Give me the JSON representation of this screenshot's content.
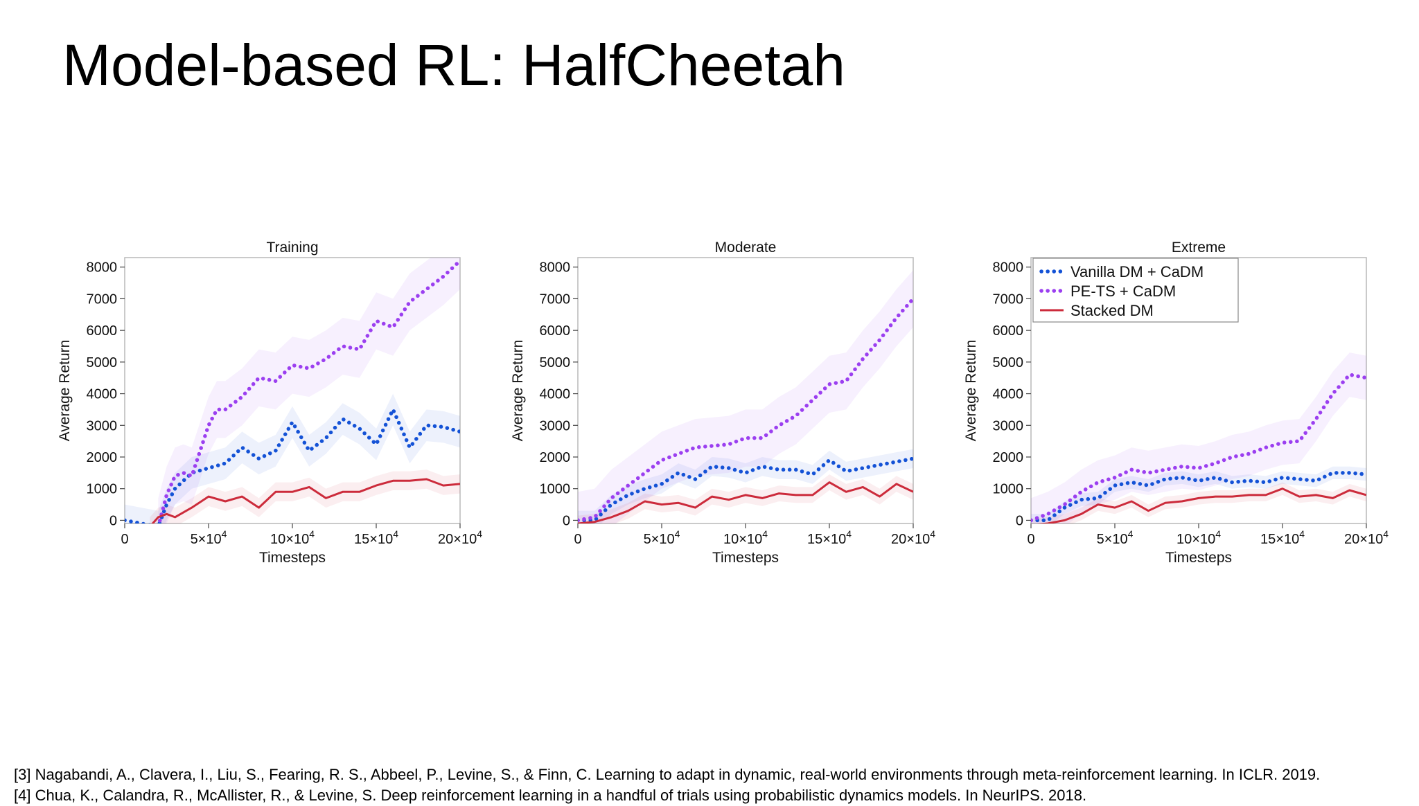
{
  "title": "Model-based RL: HalfCheetah",
  "references": [
    "[3] Nagabandi, A., Clavera, I., Liu, S., Fearing, R. S., Abbeel, P., Levine, S., & Finn, C. Learning to adapt in dynamic, real-world environments through meta-reinforcement learning. In ICLR. 2019.",
    "[4] Chua, K., Calandra, R., McAllister, R., & Levine, S. Deep reinforcement learning in a handful of trials using probabilistic dynamics models. In NeurIPS. 2018."
  ],
  "colors": {
    "vanilla": "#1452d6",
    "pets": "#9b3ff0",
    "stacked": "#cc2b3b"
  },
  "chart_data": [
    {
      "type": "line",
      "title": "Training",
      "xlabel": "Timesteps",
      "ylabel": "Average Return",
      "xlim": [
        0,
        200000
      ],
      "ylim": [
        -100,
        8300
      ],
      "yticks": [
        0,
        1000,
        2000,
        3000,
        4000,
        5000,
        6000,
        7000,
        8000
      ],
      "xticks": [
        0,
        50000,
        100000,
        150000,
        200000
      ],
      "xtick_labels": [
        {
          "base": "0",
          "exp": ""
        },
        {
          "base": "5×10",
          "exp": "4"
        },
        {
          "base": "10×10",
          "exp": "4"
        },
        {
          "base": "15×10",
          "exp": "4"
        },
        {
          "base": "20×10",
          "exp": "4"
        }
      ],
      "grid": false,
      "legend": null,
      "series": [
        {
          "name": "Vanilla DM + CaDM",
          "key": "vanilla",
          "style": "dotted",
          "x": [
            0,
            20000,
            25000,
            30000,
            40000,
            50000,
            60000,
            70000,
            80000,
            90000,
            100000,
            110000,
            120000,
            130000,
            140000,
            150000,
            160000,
            170000,
            180000,
            190000,
            200000
          ],
          "y": [
            0,
            -200,
            500,
            1000,
            1500,
            1650,
            1800,
            2300,
            1950,
            2200,
            3100,
            2200,
            2600,
            3200,
            2900,
            2400,
            3500,
            2300,
            3000,
            2950,
            2800
          ],
          "band": 500
        },
        {
          "name": "PE-TS + CaDM",
          "key": "pets",
          "style": "dotted",
          "x": [
            20000,
            25000,
            30000,
            35000,
            40000,
            45000,
            50000,
            55000,
            60000,
            70000,
            80000,
            90000,
            100000,
            110000,
            120000,
            130000,
            140000,
            150000,
            160000,
            170000,
            180000,
            190000,
            200000
          ],
          "y": [
            -200,
            800,
            1400,
            1500,
            1400,
            2200,
            3000,
            3500,
            3500,
            3900,
            4500,
            4400,
            4900,
            4800,
            5100,
            5500,
            5400,
            6300,
            6100,
            6900,
            7300,
            7700,
            8200
          ],
          "band": 900
        },
        {
          "name": "Stacked DM",
          "key": "stacked",
          "style": "solid",
          "x": [
            15000,
            20000,
            25000,
            30000,
            40000,
            50000,
            60000,
            70000,
            80000,
            90000,
            100000,
            110000,
            120000,
            130000,
            140000,
            150000,
            160000,
            170000,
            180000,
            190000,
            200000
          ],
          "y": [
            -200,
            100,
            200,
            100,
            400,
            750,
            600,
            750,
            400,
            900,
            900,
            1050,
            700,
            900,
            900,
            1100,
            1250,
            1250,
            1300,
            1100,
            1150
          ],
          "band": 300
        }
      ]
    },
    {
      "type": "line",
      "title": "Moderate",
      "xlabel": "Timesteps",
      "ylabel": "Average Return",
      "xlim": [
        0,
        200000
      ],
      "ylim": [
        -100,
        8300
      ],
      "yticks": [
        0,
        1000,
        2000,
        3000,
        4000,
        5000,
        6000,
        7000,
        8000
      ],
      "xticks": [
        0,
        50000,
        100000,
        150000,
        200000
      ],
      "xtick_labels": [
        {
          "base": "0",
          "exp": ""
        },
        {
          "base": "5×10",
          "exp": "4"
        },
        {
          "base": "10×10",
          "exp": "4"
        },
        {
          "base": "15×10",
          "exp": "4"
        },
        {
          "base": "20×10",
          "exp": "4"
        }
      ],
      "grid": false,
      "legend": null,
      "series": [
        {
          "name": "Vanilla DM + CaDM",
          "key": "vanilla",
          "style": "dotted",
          "x": [
            0,
            10000,
            20000,
            30000,
            40000,
            50000,
            60000,
            70000,
            80000,
            90000,
            100000,
            110000,
            120000,
            130000,
            140000,
            150000,
            160000,
            170000,
            180000,
            190000,
            200000
          ],
          "y": [
            0,
            0,
            500,
            800,
            1000,
            1150,
            1500,
            1300,
            1700,
            1650,
            1500,
            1700,
            1600,
            1600,
            1450,
            1900,
            1550,
            1650,
            1750,
            1850,
            1950
          ],
          "band": 300
        },
        {
          "name": "PE-TS + CaDM",
          "key": "pets",
          "style": "dotted",
          "x": [
            0,
            10000,
            20000,
            30000,
            40000,
            50000,
            60000,
            70000,
            80000,
            90000,
            100000,
            110000,
            120000,
            130000,
            140000,
            150000,
            160000,
            170000,
            180000,
            190000,
            200000
          ],
          "y": [
            0,
            100,
            700,
            1100,
            1500,
            1900,
            2100,
            2300,
            2350,
            2400,
            2600,
            2600,
            3000,
            3300,
            3800,
            4300,
            4400,
            5100,
            5700,
            6400,
            7000
          ],
          "band": 900
        },
        {
          "name": "Stacked DM",
          "key": "stacked",
          "style": "solid",
          "x": [
            0,
            10000,
            20000,
            30000,
            40000,
            50000,
            60000,
            70000,
            80000,
            90000,
            100000,
            110000,
            120000,
            130000,
            140000,
            150000,
            160000,
            170000,
            180000,
            190000,
            200000
          ],
          "y": [
            -100,
            -50,
            100,
            300,
            600,
            500,
            550,
            400,
            750,
            650,
            800,
            700,
            850,
            800,
            800,
            1200,
            900,
            1050,
            750,
            1150,
            900
          ],
          "band": 250
        }
      ]
    },
    {
      "type": "line",
      "title": "Extreme",
      "xlabel": "Timesteps",
      "ylabel": "Average Return",
      "xlim": [
        0,
        200000
      ],
      "ylim": [
        -100,
        8300
      ],
      "yticks": [
        0,
        1000,
        2000,
        3000,
        4000,
        5000,
        6000,
        7000,
        8000
      ],
      "xticks": [
        0,
        50000,
        100000,
        150000,
        200000
      ],
      "xtick_labels": [
        {
          "base": "0",
          "exp": ""
        },
        {
          "base": "5×10",
          "exp": "4"
        },
        {
          "base": "10×10",
          "exp": "4"
        },
        {
          "base": "15×10",
          "exp": "4"
        },
        {
          "base": "20×10",
          "exp": "4"
        }
      ],
      "grid": false,
      "legend": "top-left",
      "series": [
        {
          "name": "Vanilla DM + CaDM",
          "key": "vanilla",
          "style": "dotted",
          "x": [
            0,
            10000,
            20000,
            30000,
            40000,
            50000,
            60000,
            70000,
            80000,
            90000,
            100000,
            110000,
            120000,
            130000,
            140000,
            150000,
            160000,
            170000,
            180000,
            190000,
            200000
          ],
          "y": [
            0,
            0,
            400,
            650,
            700,
            1100,
            1200,
            1100,
            1300,
            1350,
            1250,
            1350,
            1200,
            1250,
            1200,
            1350,
            1300,
            1250,
            1500,
            1500,
            1450
          ],
          "band": 200
        },
        {
          "name": "PE-TS + CaDM",
          "key": "pets",
          "style": "dotted",
          "x": [
            0,
            10000,
            20000,
            30000,
            40000,
            50000,
            60000,
            70000,
            80000,
            90000,
            100000,
            110000,
            120000,
            130000,
            140000,
            150000,
            160000,
            170000,
            180000,
            190000,
            200000
          ],
          "y": [
            0,
            200,
            500,
            900,
            1200,
            1350,
            1600,
            1500,
            1600,
            1700,
            1650,
            1800,
            2000,
            2100,
            2300,
            2450,
            2500,
            3200,
            4000,
            4600,
            4500
          ],
          "band": 700
        },
        {
          "name": "Stacked DM",
          "key": "stacked",
          "style": "solid",
          "x": [
            0,
            10000,
            20000,
            30000,
            40000,
            50000,
            60000,
            70000,
            80000,
            90000,
            100000,
            110000,
            120000,
            130000,
            140000,
            150000,
            160000,
            170000,
            180000,
            190000,
            200000
          ],
          "y": [
            -150,
            -100,
            0,
            200,
            500,
            400,
            600,
            300,
            550,
            600,
            700,
            750,
            750,
            800,
            800,
            1000,
            750,
            800,
            700,
            950,
            800
          ],
          "band": 200
        }
      ]
    }
  ]
}
